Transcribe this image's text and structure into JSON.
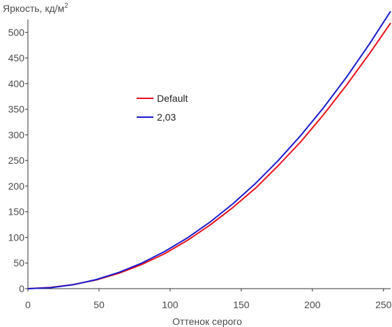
{
  "chart_data": {
    "type": "line",
    "title": "",
    "ylabel_main": "Яркость, кд/м",
    "ylabel_sup": "2",
    "xlabel": "Оттенок серого",
    "xlim": [
      0,
      255
    ],
    "ylim": [
      0,
      525
    ],
    "x_ticks": [
      0,
      50,
      100,
      150,
      200,
      250
    ],
    "y_ticks": [
      0,
      50,
      100,
      150,
      200,
      250,
      300,
      350,
      400,
      450,
      500
    ],
    "grid": false,
    "legend_position": "center-left",
    "series": [
      {
        "name": "Default",
        "color": "#e8101a",
        "x": [
          0,
          16,
          32,
          48,
          64,
          80,
          96,
          112,
          128,
          144,
          160,
          176,
          192,
          208,
          224,
          240,
          255
        ],
        "y": [
          0,
          2.5,
          8,
          17,
          30,
          47,
          68,
          94,
          124,
          158,
          196,
          240,
          287,
          340,
          397,
          458,
          518
        ]
      },
      {
        "name": "2,03",
        "color": "#1a1acf",
        "x": [
          0,
          16,
          32,
          48,
          64,
          80,
          96,
          112,
          128,
          144,
          160,
          176,
          192,
          208,
          224,
          240,
          255
        ],
        "y": [
          0,
          1.9,
          7.8,
          17.7,
          31.7,
          49.8,
          72.2,
          98.8,
          129.8,
          165.3,
          205.3,
          250,
          299.4,
          353.6,
          412.7,
          476.8,
          541
        ]
      }
    ]
  }
}
